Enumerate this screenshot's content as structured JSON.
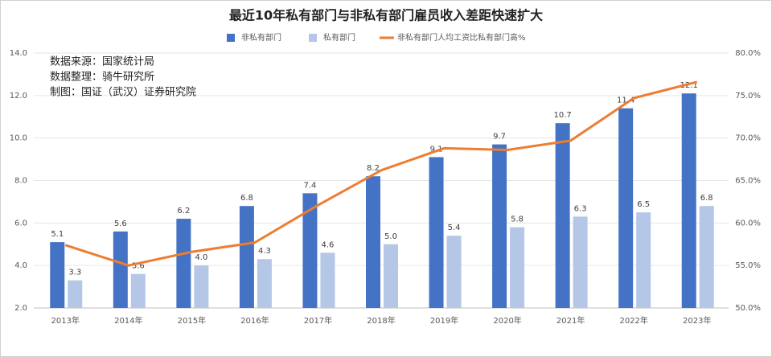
{
  "chart_data": {
    "type": "bar_line",
    "title": "最近10年私有部门与非私有部门雇员收入差距快速扩大",
    "annotations": [
      "数据来源：国家统计局",
      "数据整理：骑牛研究所",
      "制图：国证（武汉）证券研究院"
    ],
    "categories": [
      "2013年",
      "2014年",
      "2015年",
      "2016年",
      "2017年",
      "2018年",
      "2019年",
      "2020年",
      "2021年",
      "2022年",
      "2023年"
    ],
    "series": [
      {
        "name": "非私有部门",
        "type": "bar",
        "color": "#4472c4",
        "values": [
          5.1,
          5.6,
          6.2,
          6.8,
          7.4,
          8.2,
          9.1,
          9.7,
          10.7,
          11.4,
          12.1
        ],
        "value_labels": [
          "5.1",
          "5.6",
          "6.2",
          "6.8",
          "7.4",
          "8.2",
          "9.1",
          "9.7",
          "10.7",
          "11.4",
          "12.1"
        ]
      },
      {
        "name": "私有部门",
        "type": "bar",
        "color": "#b4c7e7",
        "values": [
          3.3,
          3.6,
          4.0,
          4.3,
          4.6,
          5.0,
          5.4,
          5.8,
          6.3,
          6.5,
          6.8
        ],
        "value_labels": [
          "3.3",
          "3.6",
          "4.0",
          "4.3",
          "4.6",
          "5.0",
          "5.4",
          "5.8",
          "6.3",
          "6.5",
          "6.8"
        ]
      },
      {
        "name": "非私有部门人均工资比私有部门高%",
        "type": "line",
        "axis": "y2",
        "color": "#ed7d31",
        "values": [
          57.4,
          55.0,
          56.6,
          57.7,
          62.1,
          66.2,
          68.8,
          68.6,
          69.7,
          74.7,
          76.6
        ]
      }
    ],
    "ylim": [
      2,
      14
    ],
    "yticks": [
      {
        "value": 2,
        "label": "2.0"
      },
      {
        "value": 4,
        "label": "4.0"
      },
      {
        "value": 6,
        "label": "6.0"
      },
      {
        "value": 8,
        "label": "8.0"
      },
      {
        "value": 10,
        "label": "10.0"
      },
      {
        "value": 12,
        "label": "12.0"
      },
      {
        "value": 14,
        "label": "14.0"
      }
    ],
    "y2lim": [
      50,
      80
    ],
    "y2ticks": [
      {
        "value": 50,
        "label": "50.0%"
      },
      {
        "value": 55,
        "label": "55.0%"
      },
      {
        "value": 60,
        "label": "60.0%"
      },
      {
        "value": 65,
        "label": "65.0%"
      },
      {
        "value": 70,
        "label": "70.0%"
      },
      {
        "value": 75,
        "label": "75.0%"
      },
      {
        "value": 80,
        "label": "80.0%"
      }
    ],
    "grid": true
  }
}
